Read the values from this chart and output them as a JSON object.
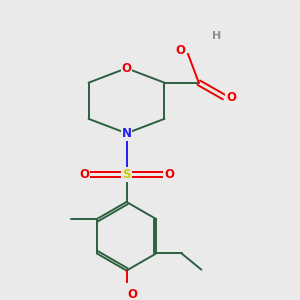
{
  "bg_color": "#eaeaea",
  "bond_color": "#2d6040",
  "bond_width": 1.4,
  "atom_colors": {
    "O": "#ee0000",
    "N": "#2020ee",
    "S": "#cccc00",
    "C": "#2d6040",
    "H": "#909090"
  },
  "font_size": 8.5
}
